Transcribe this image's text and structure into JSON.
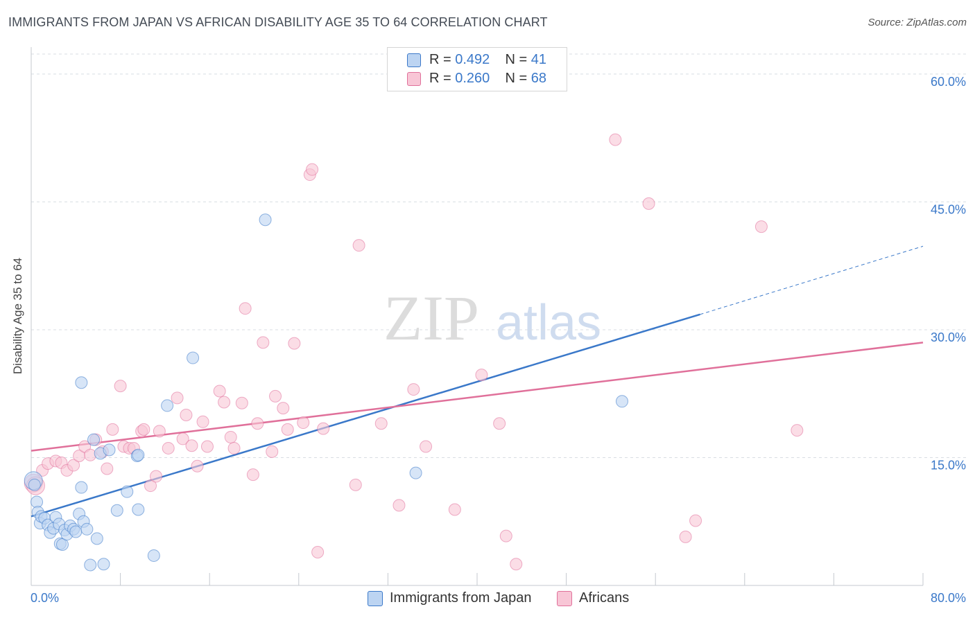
{
  "title": "IMMIGRANTS FROM JAPAN VS AFRICAN DISABILITY AGE 35 TO 64 CORRELATION CHART",
  "source": "Source: ZipAtlas.com",
  "watermark": {
    "zip": "ZIP",
    "atlas": "atlas"
  },
  "colors": {
    "blue": "#3a78c9",
    "pink": "#e0709a",
    "blue_fill": "#bcd4f2",
    "pink_fill": "#f8c6d6",
    "grid": "#d8dde3",
    "tick_label": "#3a78c9"
  },
  "legend": {
    "rows": [
      {
        "r_label": "R =",
        "r_value": "0.492",
        "n_label": "N =",
        "n_value": "41"
      },
      {
        "r_label": "R =",
        "r_value": "0.260",
        "n_label": "N =",
        "n_value": "68"
      }
    ],
    "bottom": [
      "Immigrants from Japan",
      "Africans"
    ]
  },
  "chart_data": {
    "type": "scatter",
    "title": "IMMIGRANTS FROM JAPAN VS AFRICAN DISABILITY AGE 35 TO 64 CORRELATION CHART",
    "xlabel": "",
    "ylabel": "Disability Age 35 to 64",
    "xlim": [
      0,
      80
    ],
    "ylim": [
      0,
      63
    ],
    "x_tick_labels": [
      "0.0%",
      "80.0%"
    ],
    "y_ticks": [
      15,
      30,
      45,
      60
    ],
    "y_tick_labels": [
      "15.0%",
      "30.0%",
      "45.0%",
      "60.0%"
    ],
    "grid": true,
    "legend_position": "top-center",
    "series": [
      {
        "name": "Immigrants from Japan",
        "color": "#3a78c9",
        "trend": {
          "x0": 0,
          "y0": 8.1,
          "x1": 60,
          "y1": 31.8,
          "dashed_to_x": 80,
          "dashed_to_y": 39.8
        },
        "points": [
          [
            0.2,
            12.3
          ],
          [
            0.3,
            11.8
          ],
          [
            0.5,
            9.8
          ],
          [
            0.6,
            8.6
          ],
          [
            0.8,
            7.3
          ],
          [
            0.9,
            8.1
          ],
          [
            1.2,
            7.9
          ],
          [
            1.5,
            7.1
          ],
          [
            1.7,
            6.2
          ],
          [
            2.0,
            6.7
          ],
          [
            2.2,
            8.0
          ],
          [
            2.5,
            7.2
          ],
          [
            2.6,
            4.9
          ],
          [
            2.8,
            4.8
          ],
          [
            3.0,
            6.5
          ],
          [
            3.2,
            6.0
          ],
          [
            3.5,
            7.0
          ],
          [
            3.8,
            6.6
          ],
          [
            4.0,
            6.3
          ],
          [
            4.3,
            8.4
          ],
          [
            4.5,
            11.5
          ],
          [
            4.7,
            7.5
          ],
          [
            5.0,
            6.6
          ],
          [
            5.3,
            2.4
          ],
          [
            5.6,
            17.1
          ],
          [
            5.9,
            5.5
          ],
          [
            6.2,
            15.5
          ],
          [
            6.5,
            2.5
          ],
          [
            7.0,
            15.9
          ],
          [
            7.7,
            8.8
          ],
          [
            9.5,
            15.2
          ],
          [
            9.6,
            8.9
          ],
          [
            11.0,
            3.5
          ],
          [
            12.2,
            21.1
          ],
          [
            14.5,
            26.7
          ],
          [
            21.0,
            42.9
          ],
          [
            34.5,
            13.2
          ],
          [
            53.0,
            21.6
          ],
          [
            9.6,
            15.3
          ],
          [
            8.6,
            11.0
          ],
          [
            4.5,
            23.8
          ]
        ]
      },
      {
        "name": "Africans",
        "color": "#e0709a",
        "trend": {
          "x0": 0,
          "y0": 15.8,
          "x1": 80,
          "y1": 28.5
        },
        "points": [
          [
            0.2,
            12.0
          ],
          [
            0.4,
            11.7
          ],
          [
            1.0,
            13.5
          ],
          [
            1.5,
            14.3
          ],
          [
            2.2,
            14.6
          ],
          [
            2.7,
            14.4
          ],
          [
            3.2,
            13.5
          ],
          [
            3.8,
            14.1
          ],
          [
            4.3,
            15.2
          ],
          [
            4.8,
            16.3
          ],
          [
            5.3,
            15.3
          ],
          [
            5.8,
            17.1
          ],
          [
            6.4,
            15.7
          ],
          [
            6.8,
            13.7
          ],
          [
            7.3,
            18.3
          ],
          [
            8.0,
            23.4
          ],
          [
            8.3,
            16.3
          ],
          [
            8.8,
            16.1
          ],
          [
            9.2,
            16.1
          ],
          [
            9.9,
            18.1
          ],
          [
            10.1,
            18.3
          ],
          [
            10.7,
            11.7
          ],
          [
            11.2,
            12.8
          ],
          [
            11.5,
            18.1
          ],
          [
            12.3,
            16.1
          ],
          [
            13.1,
            22.0
          ],
          [
            13.6,
            17.2
          ],
          [
            13.9,
            20.0
          ],
          [
            14.4,
            16.4
          ],
          [
            14.9,
            14.0
          ],
          [
            15.4,
            19.2
          ],
          [
            15.8,
            16.3
          ],
          [
            16.9,
            22.8
          ],
          [
            17.3,
            21.5
          ],
          [
            17.9,
            17.4
          ],
          [
            18.2,
            16.1
          ],
          [
            18.9,
            21.4
          ],
          [
            19.2,
            32.5
          ],
          [
            19.9,
            13.0
          ],
          [
            20.3,
            19.0
          ],
          [
            20.8,
            28.5
          ],
          [
            21.6,
            15.7
          ],
          [
            21.9,
            22.2
          ],
          [
            22.6,
            20.8
          ],
          [
            23.0,
            18.3
          ],
          [
            23.6,
            28.4
          ],
          [
            24.4,
            19.1
          ],
          [
            25.0,
            48.2
          ],
          [
            25.2,
            48.8
          ],
          [
            25.7,
            3.9
          ],
          [
            26.2,
            18.4
          ],
          [
            29.1,
            11.8
          ],
          [
            29.4,
            39.9
          ],
          [
            31.4,
            19.0
          ],
          [
            33.0,
            9.4
          ],
          [
            34.3,
            23.0
          ],
          [
            35.4,
            16.3
          ],
          [
            38.0,
            8.9
          ],
          [
            40.4,
            24.7
          ],
          [
            42.0,
            19.0
          ],
          [
            42.6,
            5.8
          ],
          [
            43.5,
            2.5
          ],
          [
            52.4,
            52.3
          ],
          [
            55.4,
            44.8
          ],
          [
            58.7,
            5.7
          ],
          [
            59.6,
            7.6
          ],
          [
            65.5,
            42.1
          ],
          [
            68.7,
            18.2
          ]
        ]
      }
    ]
  }
}
